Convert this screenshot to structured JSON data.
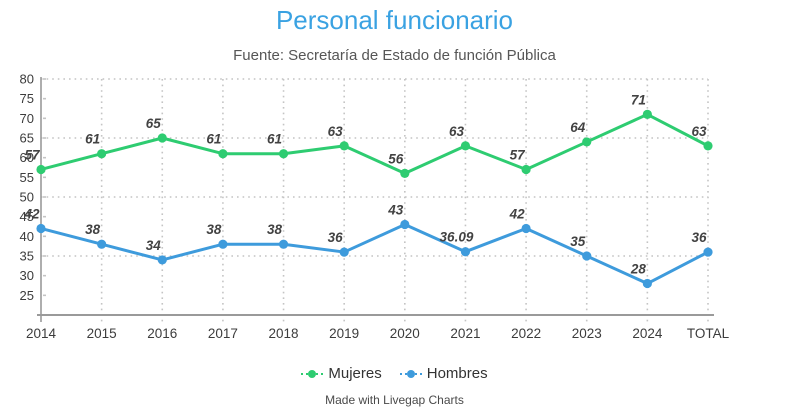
{
  "chart_data": {
    "type": "line",
    "title": "Personal funcionario",
    "subtitle": "Fuente: Secretaría de Estado de función Pública",
    "categories": [
      "2014",
      "2015",
      "2016",
      "2017",
      "2018",
      "2019",
      "2020",
      "2021",
      "2022",
      "2023",
      "2024",
      "TOTAL"
    ],
    "series": [
      {
        "name": "Mujeres",
        "color": "#2ecc71",
        "values": [
          57,
          61,
          65,
          61,
          61,
          63,
          56,
          63,
          57,
          64,
          71,
          63
        ]
      },
      {
        "name": "Hombres",
        "color": "#3e9bdc",
        "values": [
          42,
          38,
          34,
          38,
          38,
          36,
          43,
          36.09,
          42,
          35,
          28,
          36
        ]
      }
    ],
    "ylim": [
      20,
      80
    ],
    "ytick_step": 5,
    "ytick_labels": [
      "25",
      "30",
      "35",
      "40",
      "45",
      "50",
      "55",
      "60",
      "65",
      "70",
      "75",
      "80"
    ],
    "grid": {
      "horizontal_dotted_at": [
        35,
        50,
        65,
        80
      ],
      "vertical_dotted": "every category",
      "style": "dotted"
    },
    "legend_position": "bottom",
    "marker": "filled-circle",
    "data_labels": "italic, above each point"
  },
  "footer": {
    "credit": "Made with Livegap Charts"
  },
  "colors": {
    "title": "#3aa2e2",
    "subtitle": "#565656",
    "axis": "#9a9a9a",
    "grid": "#c4c4c4",
    "tick_text": "#3c3c3c",
    "point_label_text": "#424242",
    "legend_text": "#333333",
    "credit_text": "#4a4a4a"
  }
}
